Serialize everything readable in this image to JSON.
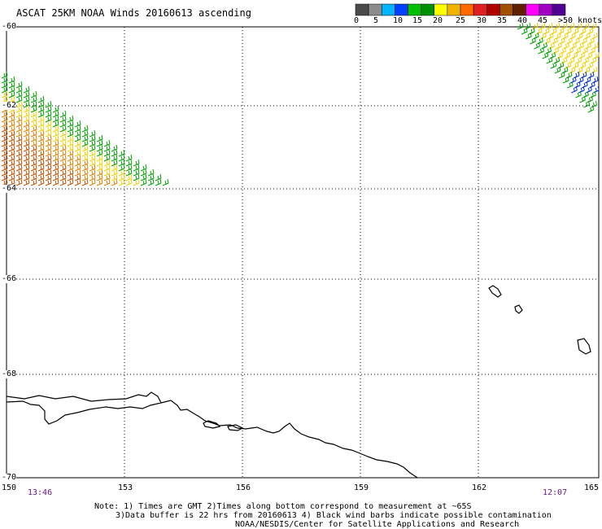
{
  "title": "ASCAT 25KM NOAA Winds 20160613 ascending",
  "legend": {
    "colors": [
      "#4a4a4a",
      "#8c8c8c",
      "#00b4ff",
      "#0040ff",
      "#00c000",
      "#009000",
      "#ffff00",
      "#f0b400",
      "#ff6a00",
      "#e02020",
      "#b00000",
      "#a05000",
      "#602000",
      "#ff00ff",
      "#a000c0",
      "#500090"
    ],
    "ticks": [
      "0",
      "5",
      "10",
      "15",
      "20",
      "25",
      "30",
      "35",
      "40",
      "45",
      ">50 knots"
    ]
  },
  "lat_labels": [
    "-60",
    "-62",
    "-64",
    "-66",
    "-68",
    "-70"
  ],
  "lon_labels": [
    "150",
    "153",
    "156",
    "159",
    "162",
    "165"
  ],
  "times": {
    "left": "13:46",
    "right": "12:07"
  },
  "note": {
    "line1": "Note: 1) Times are GMT 2)Times along bottom correspond to measurement at ~65S",
    "line2": "3)Data buffer is 22 hrs from 20160613 4) Black wind barbs indicate possible contamination",
    "line3": "NOAA/NESDIS/Center for Satellite Applications and Research"
  },
  "map": {
    "lat_range": [
      -70,
      -60
    ],
    "lon_range": [
      150,
      165
    ],
    "gridlines": "dotted"
  }
}
